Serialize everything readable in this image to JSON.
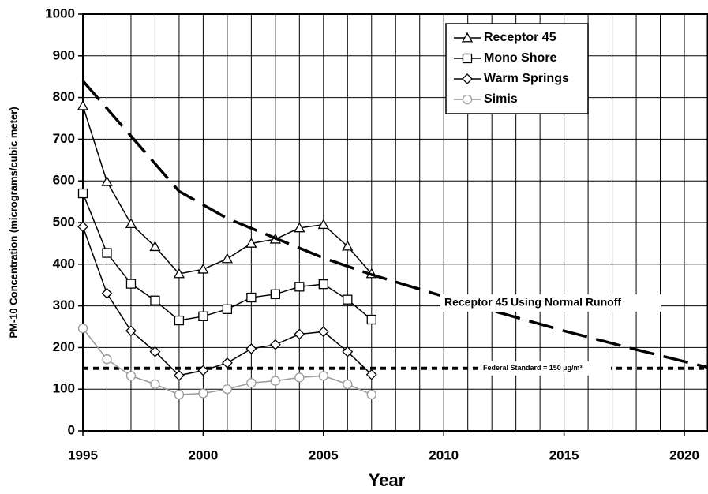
{
  "chart_data": {
    "type": "line",
    "xlabel": "Year",
    "ylabel": "PM-10 Concentration (micrograms/cubic meter)",
    "xlim": [
      1995,
      2021
    ],
    "xticks": [
      1995,
      2000,
      2005,
      2010,
      2015,
      2020
    ],
    "xgrid_step": 1,
    "ylim": [
      0,
      1000
    ],
    "yticks": [
      0,
      100,
      200,
      300,
      400,
      500,
      600,
      700,
      800,
      900,
      1000
    ],
    "grid": true,
    "legend": "upper right",
    "series": [
      {
        "name": "Receptor 45",
        "color": "#000000",
        "marker": "triangle",
        "x": [
          1995,
          1996,
          1997,
          1998,
          1999,
          2000,
          2001,
          2002,
          2003,
          2004,
          2005,
          2006,
          2007
        ],
        "values": [
          780,
          598,
          497,
          442,
          377,
          388,
          413,
          450,
          460,
          487,
          495,
          443,
          377
        ]
      },
      {
        "name": "Mono Shore",
        "color": "#000000",
        "marker": "square",
        "x": [
          1995,
          1996,
          1997,
          1998,
          1999,
          2000,
          2001,
          2002,
          2003,
          2004,
          2005,
          2006,
          2007
        ],
        "values": [
          570,
          427,
          353,
          313,
          265,
          275,
          292,
          320,
          328,
          346,
          352,
          315,
          267
        ]
      },
      {
        "name": "Warm Springs",
        "color": "#000000",
        "marker": "diamond",
        "x": [
          1995,
          1996,
          1997,
          1998,
          1999,
          2000,
          2001,
          2002,
          2003,
          2004,
          2005,
          2006,
          2007
        ],
        "values": [
          490,
          330,
          240,
          190,
          133,
          145,
          163,
          197,
          207,
          232,
          238,
          190,
          135
        ]
      },
      {
        "name": "Simis",
        "color": "#9a9a9a",
        "marker": "circle",
        "x": [
          1995,
          1996,
          1997,
          1998,
          1999,
          2000,
          2001,
          2002,
          2003,
          2004,
          2005,
          2006,
          2007
        ],
        "values": [
          246,
          172,
          132,
          112,
          87,
          90,
          100,
          115,
          120,
          128,
          132,
          112,
          87
        ]
      },
      {
        "name": "Receptor 45 Using Normal Runoff",
        "color": "#000000",
        "style": "dashed",
        "in_legend": false,
        "x": [
          1995,
          1999,
          2001,
          2005,
          2007,
          2011,
          2015,
          2018,
          2021
        ],
        "values": [
          840,
          575,
          510,
          415,
          375,
          305,
          240,
          195,
          152
        ]
      }
    ],
    "reference_line": {
      "value": 150,
      "label": "Federal Standard = 150 µg/m³",
      "style": "dotted",
      "color": "#000000"
    }
  }
}
